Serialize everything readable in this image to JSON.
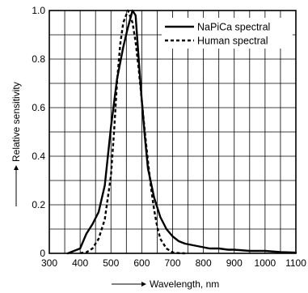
{
  "chart_data": {
    "type": "line",
    "title": "",
    "xlabel": "Wavelength, nm",
    "ylabel": "Relative sensitivity",
    "xlim": [
      300,
      1100
    ],
    "ylim": [
      0,
      1.0
    ],
    "grid": true,
    "x_ticks": [
      300,
      400,
      500,
      600,
      700,
      800,
      900,
      1000,
      1100
    ],
    "x_tick_labels": [
      "300",
      "400",
      "500",
      "600",
      "700",
      "800",
      "900",
      "1000",
      "1100"
    ],
    "y_ticks": [
      0,
      0.2,
      0.4,
      0.6,
      0.8,
      1.0
    ],
    "y_tick_labels": [
      "0",
      "0.2",
      "0.4",
      "0.6",
      "0.8",
      "1.0"
    ],
    "legend_position": "top-right",
    "series": [
      {
        "name": "NaPiCa spectral",
        "style": "solid",
        "color": "#000000",
        "points": [
          [
            360,
            0
          ],
          [
            380,
            0.01
          ],
          [
            400,
            0.02
          ],
          [
            420,
            0.08
          ],
          [
            440,
            0.12
          ],
          [
            460,
            0.17
          ],
          [
            480,
            0.28
          ],
          [
            500,
            0.52
          ],
          [
            520,
            0.72
          ],
          [
            540,
            0.85
          ],
          [
            555,
            0.93
          ],
          [
            570,
            1.0
          ],
          [
            580,
            0.98
          ],
          [
            590,
            0.8
          ],
          [
            600,
            0.63
          ],
          [
            610,
            0.48
          ],
          [
            620,
            0.35
          ],
          [
            640,
            0.23
          ],
          [
            660,
            0.15
          ],
          [
            680,
            0.1
          ],
          [
            700,
            0.07
          ],
          [
            720,
            0.05
          ],
          [
            740,
            0.04
          ],
          [
            760,
            0.035
          ],
          [
            780,
            0.03
          ],
          [
            800,
            0.025
          ],
          [
            820,
            0.02
          ],
          [
            850,
            0.02
          ],
          [
            880,
            0.015
          ],
          [
            900,
            0.015
          ],
          [
            950,
            0.01
          ],
          [
            1000,
            0.01
          ],
          [
            1050,
            0.005
          ],
          [
            1100,
            0.003
          ]
        ]
      },
      {
        "name": "Human spectral",
        "style": "dashed",
        "color": "#000000",
        "points": [
          [
            400,
            0.001
          ],
          [
            420,
            0.004
          ],
          [
            440,
            0.02
          ],
          [
            460,
            0.06
          ],
          [
            480,
            0.14
          ],
          [
            500,
            0.32
          ],
          [
            510,
            0.5
          ],
          [
            520,
            0.71
          ],
          [
            530,
            0.86
          ],
          [
            540,
            0.95
          ],
          [
            555,
            1.0
          ],
          [
            570,
            0.95
          ],
          [
            580,
            0.87
          ],
          [
            590,
            0.76
          ],
          [
            600,
            0.63
          ],
          [
            610,
            0.5
          ],
          [
            620,
            0.38
          ],
          [
            630,
            0.27
          ],
          [
            640,
            0.18
          ],
          [
            650,
            0.11
          ],
          [
            660,
            0.06
          ],
          [
            680,
            0.02
          ],
          [
            700,
            0.004
          ],
          [
            720,
            0.001
          ],
          [
            740,
            0.0
          ]
        ]
      }
    ]
  }
}
